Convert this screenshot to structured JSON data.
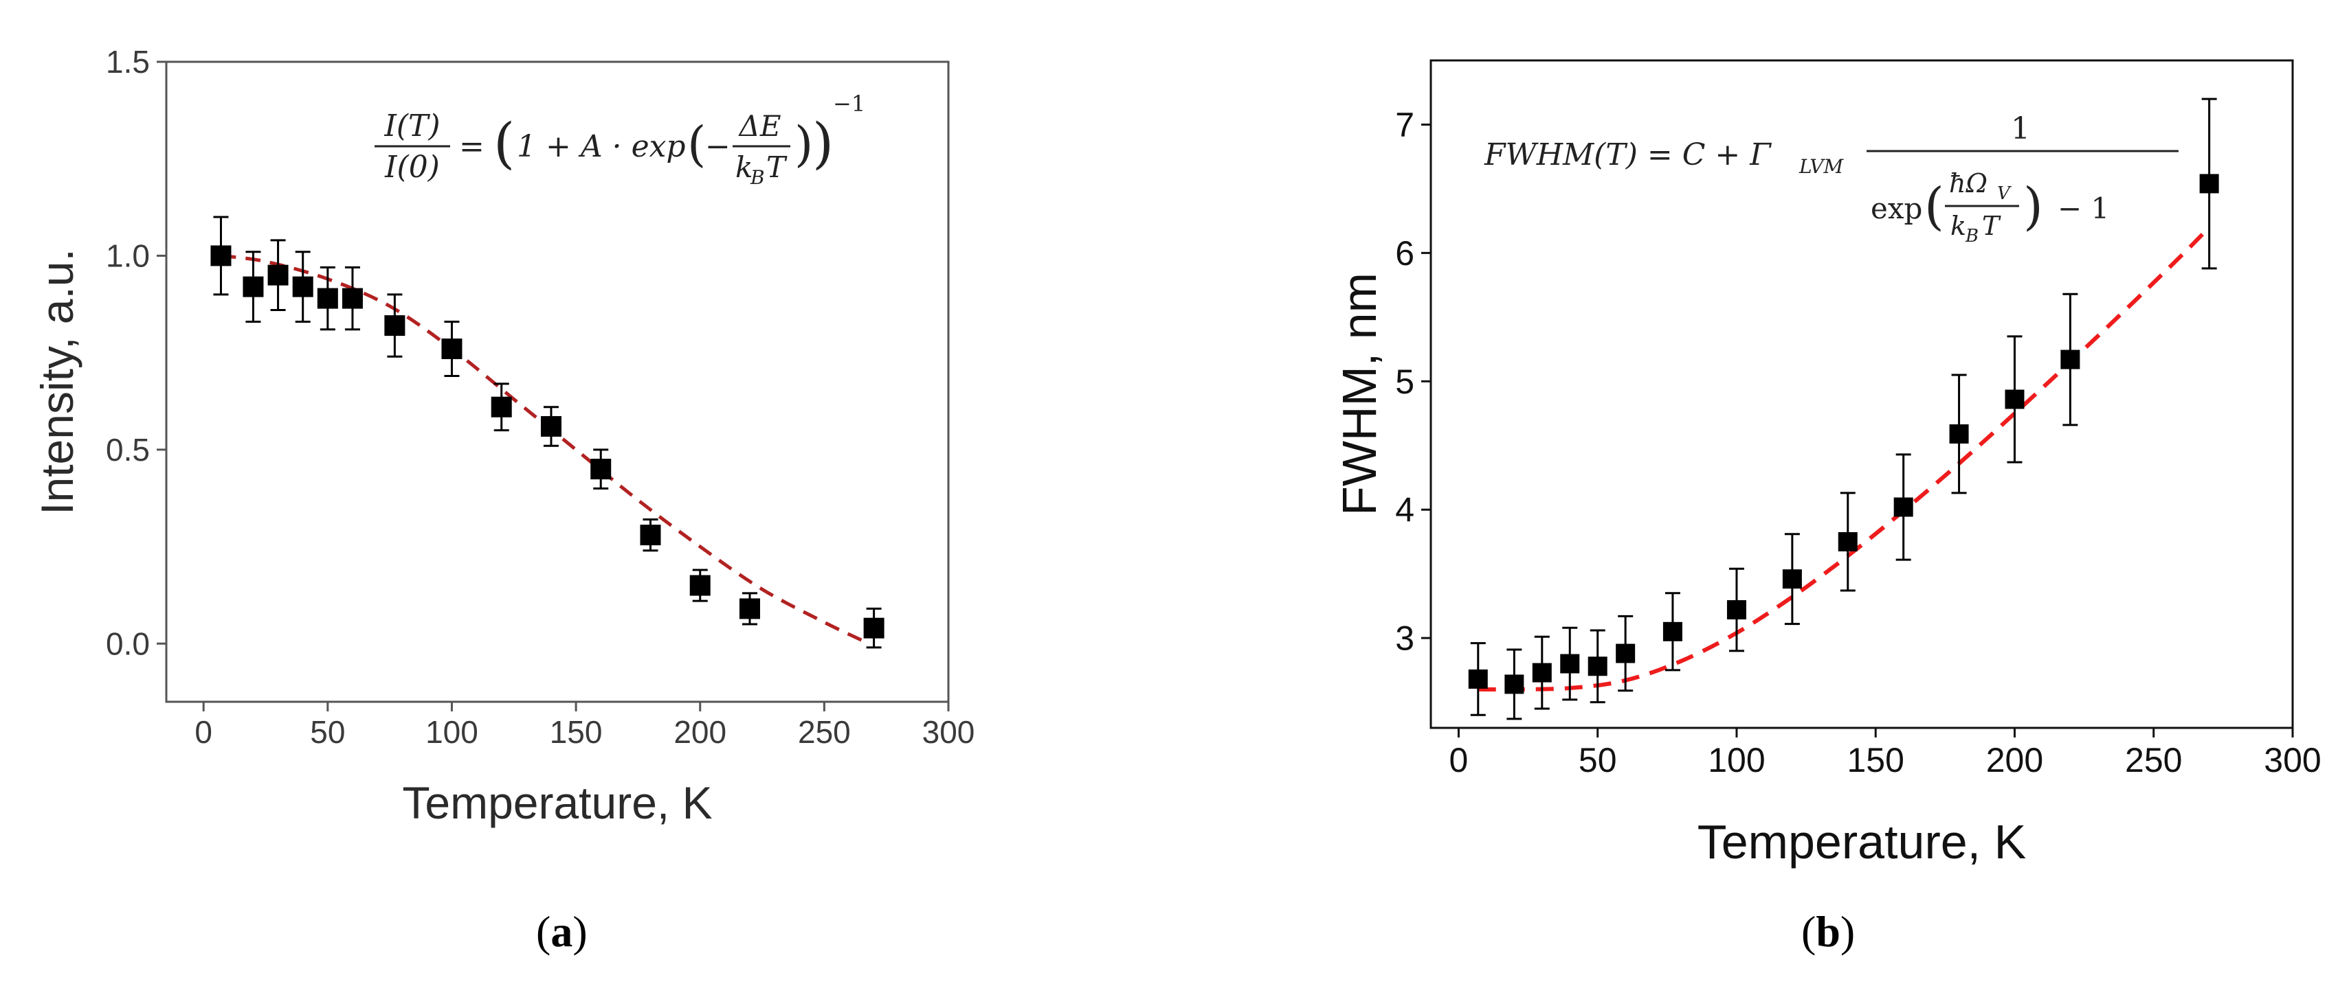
{
  "panels": {
    "a": {
      "caption_open": "(",
      "caption_letter": "a",
      "caption_close": ")"
    },
    "b": {
      "caption_open": "(",
      "caption_letter": "b",
      "caption_close": ")"
    }
  },
  "colors": {
    "fit": "#b22222",
    "fit_b": "#ee1c1c",
    "marker": "#000000"
  },
  "chart_data": [
    {
      "type": "scatter",
      "panel": "a",
      "title": "",
      "xlabel": "Temperature, K",
      "ylabel": "Intensity, a.u.",
      "xlim": [
        -15,
        300
      ],
      "ylim": [
        -0.15,
        1.5
      ],
      "xticks": [
        0,
        50,
        100,
        150,
        200,
        250,
        300
      ],
      "yticks": [
        0.0,
        0.5,
        1.0,
        1.5
      ],
      "xtick_labels": [
        "0",
        "50",
        "100",
        "150",
        "200",
        "250",
        "300"
      ],
      "ytick_labels": [
        "0.0",
        "0.5",
        "1.0",
        "1.5"
      ],
      "formula": {
        "lhs_num": "I(T)",
        "lhs_den": "I(0)",
        "equals": "=",
        "open": "(",
        "one_plus_a": "1 + A · exp",
        "inner_open": "(",
        "minus": "−",
        "frac_num": "ΔE",
        "frac_den": "k",
        "frac_den_sub": "B",
        "frac_den_tail": "T",
        "inner_close": ")",
        "close": ")",
        "power": "−1"
      },
      "series": [
        {
          "name": "data",
          "x": [
            7,
            20,
            30,
            40,
            50,
            60,
            77,
            100,
            120,
            140,
            160,
            180,
            200,
            220,
            270
          ],
          "y": [
            1.0,
            0.92,
            0.95,
            0.92,
            0.89,
            0.89,
            0.82,
            0.76,
            0.61,
            0.56,
            0.45,
            0.28,
            0.15,
            0.09,
            0.04
          ],
          "yerr": [
            0.1,
            0.09,
            0.09,
            0.09,
            0.08,
            0.08,
            0.08,
            0.07,
            0.06,
            0.05,
            0.05,
            0.04,
            0.04,
            0.04,
            0.05
          ]
        },
        {
          "name": "fit",
          "x": [
            7,
            25,
            50,
            75,
            100,
            125,
            150,
            175,
            200,
            225,
            250,
            268
          ],
          "y": [
            1.0,
            0.985,
            0.94,
            0.87,
            0.76,
            0.63,
            0.5,
            0.37,
            0.25,
            0.14,
            0.055,
            0.0
          ]
        }
      ]
    },
    {
      "type": "scatter",
      "panel": "b",
      "title": "",
      "xlabel": "Temperature, K",
      "ylabel": "FWHM, nm",
      "xlim": [
        -10,
        300
      ],
      "ylim": [
        2.3,
        7.5
      ],
      "xticks": [
        0,
        50,
        100,
        150,
        200,
        250,
        300
      ],
      "yticks": [
        3,
        4,
        5,
        6,
        7
      ],
      "xtick_labels": [
        "0",
        "50",
        "100",
        "150",
        "200",
        "250",
        "300"
      ],
      "ytick_labels": [
        "3",
        "4",
        "5",
        "6",
        "7"
      ],
      "formula": {
        "lhs": "FWHM(T) = C + Γ",
        "sub": "LVM",
        "num": "1",
        "exp": "exp",
        "open": "(",
        "inner_num": "ħΩ",
        "inner_num_sub": "V",
        "inner_den": "k",
        "inner_den_sub": "B",
        "inner_den_tail": "T",
        "close": ")",
        "minus_one": "− 1"
      },
      "series": [
        {
          "name": "data",
          "x": [
            7,
            20,
            30,
            40,
            50,
            60,
            77,
            100,
            120,
            140,
            160,
            180,
            200,
            220,
            270
          ],
          "y": [
            2.68,
            2.64,
            2.73,
            2.8,
            2.78,
            2.88,
            3.05,
            3.22,
            3.46,
            3.75,
            4.02,
            4.59,
            4.86,
            5.17,
            6.54
          ],
          "yerr": [
            0.28,
            0.27,
            0.28,
            0.28,
            0.28,
            0.29,
            0.3,
            0.32,
            0.35,
            0.38,
            0.41,
            0.46,
            0.49,
            0.51,
            0.66
          ]
        },
        {
          "name": "fit",
          "x": [
            7,
            20,
            40,
            60,
            80,
            100,
            120,
            140,
            160,
            180,
            200,
            220,
            240,
            260,
            270
          ],
          "y": [
            2.6,
            2.6,
            2.61,
            2.67,
            2.82,
            3.04,
            3.32,
            3.64,
            3.99,
            4.36,
            4.75,
            5.15,
            5.56,
            5.98,
            6.2
          ]
        }
      ]
    }
  ]
}
